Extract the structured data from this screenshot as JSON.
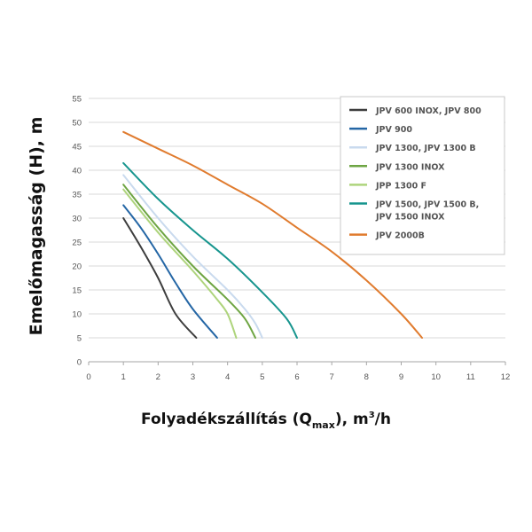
{
  "chart_data": {
    "type": "line",
    "xlabel": {
      "main": "Folyadékszállítás (Q",
      "sub": "max",
      "tail": "), m",
      "sup": "3",
      "end": "/h"
    },
    "ylabel": "Emelőmagasság (H), m",
    "xlim": [
      0,
      12
    ],
    "ylim": [
      0,
      55
    ],
    "x_ticks": [
      "0",
      "1",
      "2",
      "3",
      "4",
      "5",
      "6",
      "7",
      "8",
      "9",
      "10",
      "11",
      "12"
    ],
    "y_ticks": [
      "0",
      "5",
      "10",
      "15",
      "20",
      "25",
      "30",
      "35",
      "40",
      "45",
      "50",
      "55"
    ],
    "grid": "horizontal",
    "legend_position": "top-right",
    "series": [
      {
        "legend": [
          "JPV 600 INOX, JPV 800"
        ],
        "color": "#3d3d3d",
        "points": [
          [
            1,
            30
          ],
          [
            1.5,
            24
          ],
          [
            2,
            17.5
          ],
          [
            2.5,
            10
          ],
          [
            3.1,
            5
          ]
        ]
      },
      {
        "legend": [
          "JPV 900"
        ],
        "color": "#2466a5",
        "points": [
          [
            1,
            32.7
          ],
          [
            1.5,
            28
          ],
          [
            2,
            22.5
          ],
          [
            2.5,
            16.5
          ],
          [
            3,
            11
          ],
          [
            3.7,
            5
          ]
        ]
      },
      {
        "legend": [
          "JPV 1300, JPV 1300 B"
        ],
        "color": "#c9daee",
        "points": [
          [
            1,
            39
          ],
          [
            2,
            30
          ],
          [
            3,
            22
          ],
          [
            4,
            15
          ],
          [
            4.5,
            11
          ],
          [
            4.8,
            8
          ],
          [
            5,
            5
          ]
        ]
      },
      {
        "legend": [
          "JPV 1300 INOX"
        ],
        "color": "#6ea543",
        "points": [
          [
            1,
            37
          ],
          [
            2,
            28
          ],
          [
            3,
            20
          ],
          [
            4,
            13
          ],
          [
            4.5,
            9
          ],
          [
            4.8,
            5
          ]
        ]
      },
      {
        "legend": [
          "JPP 1300 F"
        ],
        "color": "#aed47c",
        "points": [
          [
            1,
            36
          ],
          [
            2,
            27
          ],
          [
            3,
            19
          ],
          [
            3.7,
            13
          ],
          [
            4,
            10
          ],
          [
            4.25,
            5
          ]
        ]
      },
      {
        "legend": [
          "JPV 1500, JPV 1500 B,",
          "JPV 1500 INOX"
        ],
        "color": "#17958e",
        "points": [
          [
            1,
            41.5
          ],
          [
            2,
            34
          ],
          [
            3,
            27.5
          ],
          [
            4,
            21.5
          ],
          [
            5,
            14.5
          ],
          [
            5.7,
            9
          ],
          [
            6,
            5
          ]
        ]
      },
      {
        "legend": [
          "JPV 2000B"
        ],
        "color": "#e07b2e",
        "points": [
          [
            1,
            48
          ],
          [
            2,
            44.5
          ],
          [
            3,
            41
          ],
          [
            4,
            37
          ],
          [
            5,
            33
          ],
          [
            6,
            28
          ],
          [
            7,
            23
          ],
          [
            8,
            17
          ],
          [
            9,
            10
          ],
          [
            9.6,
            5
          ]
        ]
      }
    ]
  }
}
